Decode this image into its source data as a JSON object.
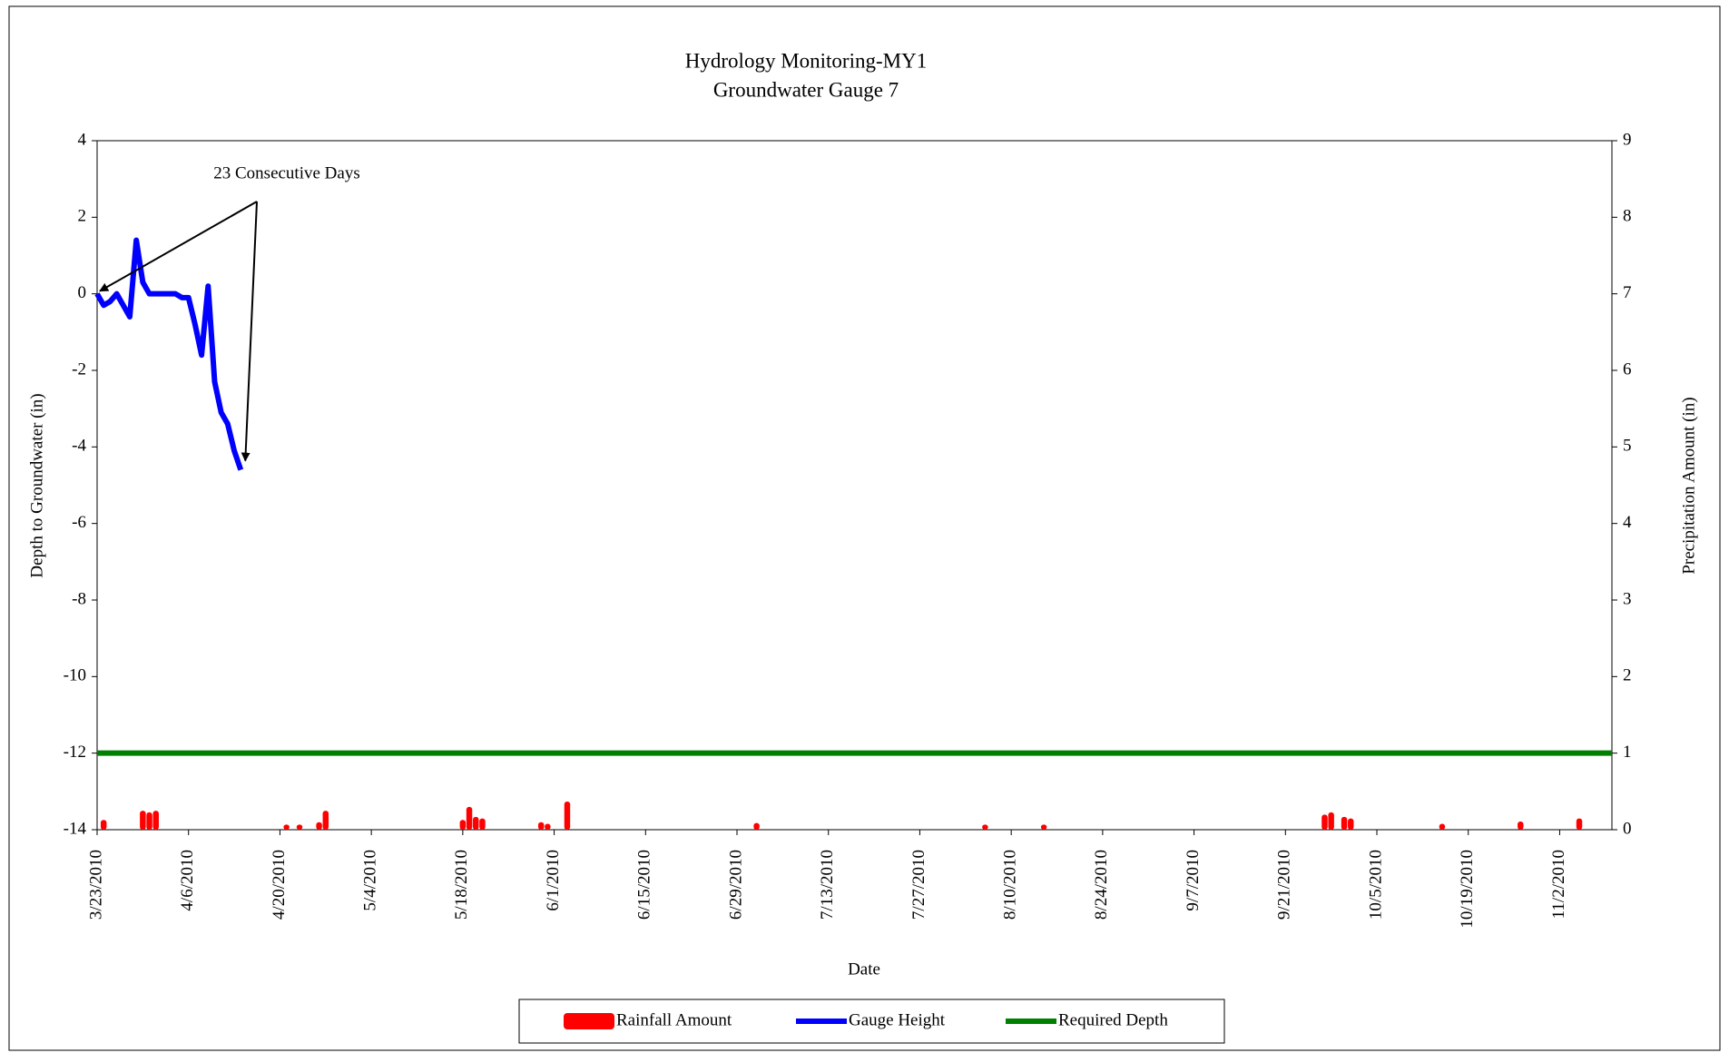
{
  "chart_data": {
    "type": "line",
    "title": [
      "Hydrology Monitoring-MY1",
      "Groundwater Gauge 7"
    ],
    "x_label": "Date",
    "y_label": "Depth to Groundwater (in)",
    "y2_label": "Precipitation Amount (in)",
    "annotation": "23 Consecutive Days",
    "xlim": [
      "3/23/2010",
      "11/10/2010"
    ],
    "xticks": [
      "3/23/2010",
      "4/6/2010",
      "4/20/2010",
      "5/4/2010",
      "5/18/2010",
      "6/1/2010",
      "6/15/2010",
      "6/29/2010",
      "7/13/2010",
      "7/27/2010",
      "8/10/2010",
      "8/24/2010",
      "9/7/2010",
      "9/21/2010",
      "10/5/2010",
      "10/19/2010",
      "11/2/2010"
    ],
    "ylim": [
      -14,
      4
    ],
    "yticks": [
      -14,
      -12,
      -10,
      -8,
      -6,
      -4,
      -2,
      0,
      2,
      4
    ],
    "y2lim": [
      0,
      9
    ],
    "y2ticks": [
      0,
      1,
      2,
      3,
      4,
      5,
      6,
      7,
      8,
      9
    ],
    "grid": false,
    "legend": "bottom",
    "series": [
      {
        "name": "Rainfall Amount",
        "type": "bar",
        "axis": "y2",
        "color": "#ff0000",
        "x": [
          "3/24/2010",
          "3/30/2010",
          "3/31/2010",
          "4/1/2010",
          "4/21/2010",
          "4/23/2010",
          "4/26/2010",
          "4/27/2010",
          "5/18/2010",
          "5/19/2010",
          "5/20/2010",
          "5/21/2010",
          "5/30/2010",
          "5/31/2010",
          "6/3/2010",
          "7/2/2010",
          "8/6/2010",
          "8/15/2010",
          "9/27/2010",
          "9/28/2010",
          "9/30/2010",
          "10/1/2010",
          "10/15/2010",
          "10/27/2010",
          "11/5/2010"
        ],
        "values": [
          0.08,
          0.2,
          0.18,
          0.2,
          0.02,
          0.02,
          0.05,
          0.2,
          0.08,
          0.25,
          0.12,
          0.1,
          0.05,
          0.03,
          0.32,
          0.04,
          0.02,
          0.02,
          0.15,
          0.18,
          0.12,
          0.1,
          0.03,
          0.06,
          0.1
        ]
      },
      {
        "name": "Gauge Height",
        "type": "line",
        "color": "#0000ff",
        "x": [
          "3/23/2010",
          "3/24/2010",
          "3/25/2010",
          "3/26/2010",
          "3/27/2010",
          "3/28/2010",
          "3/29/2010",
          "3/30/2010",
          "3/31/2010",
          "4/1/2010",
          "4/2/2010",
          "4/3/2010",
          "4/4/2010",
          "4/5/2010",
          "4/6/2010",
          "4/7/2010",
          "4/8/2010",
          "4/9/2010",
          "4/10/2010",
          "4/11/2010",
          "4/12/2010",
          "4/13/2010",
          "4/14/2010"
        ],
        "values": [
          0,
          -0.3,
          -0.2,
          0,
          -0.3,
          -0.6,
          1.4,
          0.3,
          0,
          0,
          0,
          0,
          0,
          -0.1,
          -0.1,
          -0.8,
          -1.6,
          0.2,
          -2.3,
          -3.1,
          -3.4,
          -4.1,
          -4.6
        ]
      },
      {
        "name": "Required Depth",
        "type": "line",
        "color": "#008000",
        "x": [
          "3/23/2010",
          "11/10/2010"
        ],
        "values": [
          -12,
          -12
        ]
      }
    ]
  }
}
